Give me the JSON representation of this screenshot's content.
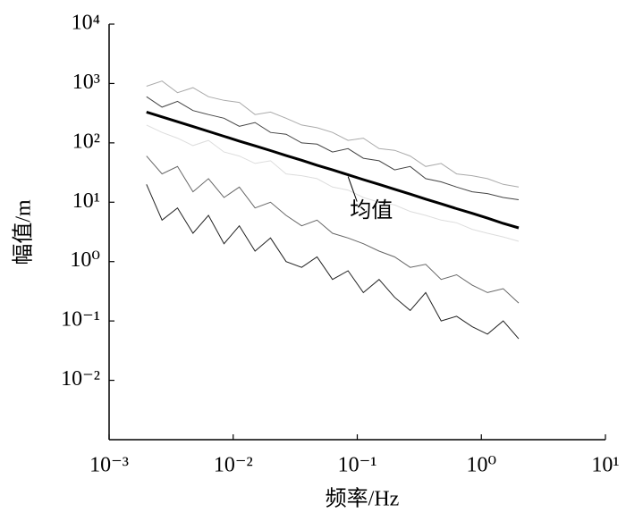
{
  "chart_data": {
    "type": "line",
    "xlabel": "频率/Hz",
    "ylabel": "幅值/m",
    "xscale": "log",
    "yscale": "log",
    "xlim": [
      0.001,
      10
    ],
    "xticks": [
      {
        "value": 0.001,
        "label": "10⁻³"
      },
      {
        "value": 0.01,
        "label": "10⁻²"
      },
      {
        "value": 0.1,
        "label": "10⁻¹"
      },
      {
        "value": 1,
        "label": "10⁰"
      },
      {
        "value": 10,
        "label": "10¹"
      }
    ],
    "ylim": [
      0.001,
      10000
    ],
    "yticks": [
      {
        "value": 0.01,
        "label": "10⁻²"
      },
      {
        "value": 0.1,
        "label": "10⁻¹"
      },
      {
        "value": 1,
        "label": "10⁰"
      },
      {
        "value": 10,
        "label": "10¹"
      },
      {
        "value": 100,
        "label": "10²"
      },
      {
        "value": 1000,
        "label": "10³"
      },
      {
        "value": 10000,
        "label": "10⁴"
      }
    ],
    "x": [
      0.002,
      0.00267,
      0.00356,
      0.00474,
      0.00632,
      0.00843,
      0.0112,
      0.015,
      0.02,
      0.0267,
      0.0356,
      0.0474,
      0.0632,
      0.0843,
      0.112,
      0.15,
      0.2,
      0.267,
      0.356,
      0.474,
      0.632,
      0.843,
      1.12,
      1.5,
      2
    ],
    "series": [
      {
        "color": "#aaaaaa",
        "values": [
          900,
          1100,
          700,
          850,
          600,
          520,
          480,
          300,
          330,
          260,
          200,
          180,
          150,
          110,
          120,
          80,
          75,
          60,
          40,
          45,
          30,
          28,
          25,
          20,
          18
        ]
      },
      {
        "color": "#444444",
        "values": [
          600,
          400,
          500,
          350,
          300,
          260,
          190,
          220,
          150,
          140,
          100,
          95,
          70,
          80,
          55,
          50,
          35,
          40,
          25,
          22,
          18,
          15,
          14,
          12,
          11
        ]
      },
      {
        "color": "#dddddd",
        "values": [
          200,
          150,
          120,
          90,
          110,
          70,
          60,
          45,
          50,
          30,
          28,
          25,
          18,
          16,
          12,
          10,
          9,
          7,
          6,
          5,
          4.5,
          3.5,
          3,
          2.6,
          2.2
        ]
      },
      {
        "color": "#666666",
        "values": [
          60,
          30,
          40,
          15,
          25,
          12,
          18,
          8,
          10,
          6,
          4,
          5,
          3,
          2.5,
          2,
          1.5,
          1.2,
          0.8,
          0.9,
          0.5,
          0.6,
          0.4,
          0.3,
          0.35,
          0.2
        ]
      },
      {
        "color": "#222222",
        "values": [
          20,
          5,
          8,
          3,
          6,
          2,
          4,
          1.5,
          2.5,
          1,
          0.8,
          1.2,
          0.5,
          0.7,
          0.3,
          0.5,
          0.25,
          0.15,
          0.3,
          0.1,
          0.12,
          0.08,
          0.06,
          0.1,
          0.05
        ]
      },
      {
        "name": "均值",
        "color": "#000000",
        "values": [
          330,
          274,
          227,
          188,
          156,
          129,
          107,
          89,
          74,
          61,
          51,
          42,
          35,
          29,
          24,
          20,
          16.5,
          13.7,
          11.3,
          9.4,
          7.8,
          6.5,
          5.4,
          4.4,
          3.7
        ]
      }
    ]
  }
}
